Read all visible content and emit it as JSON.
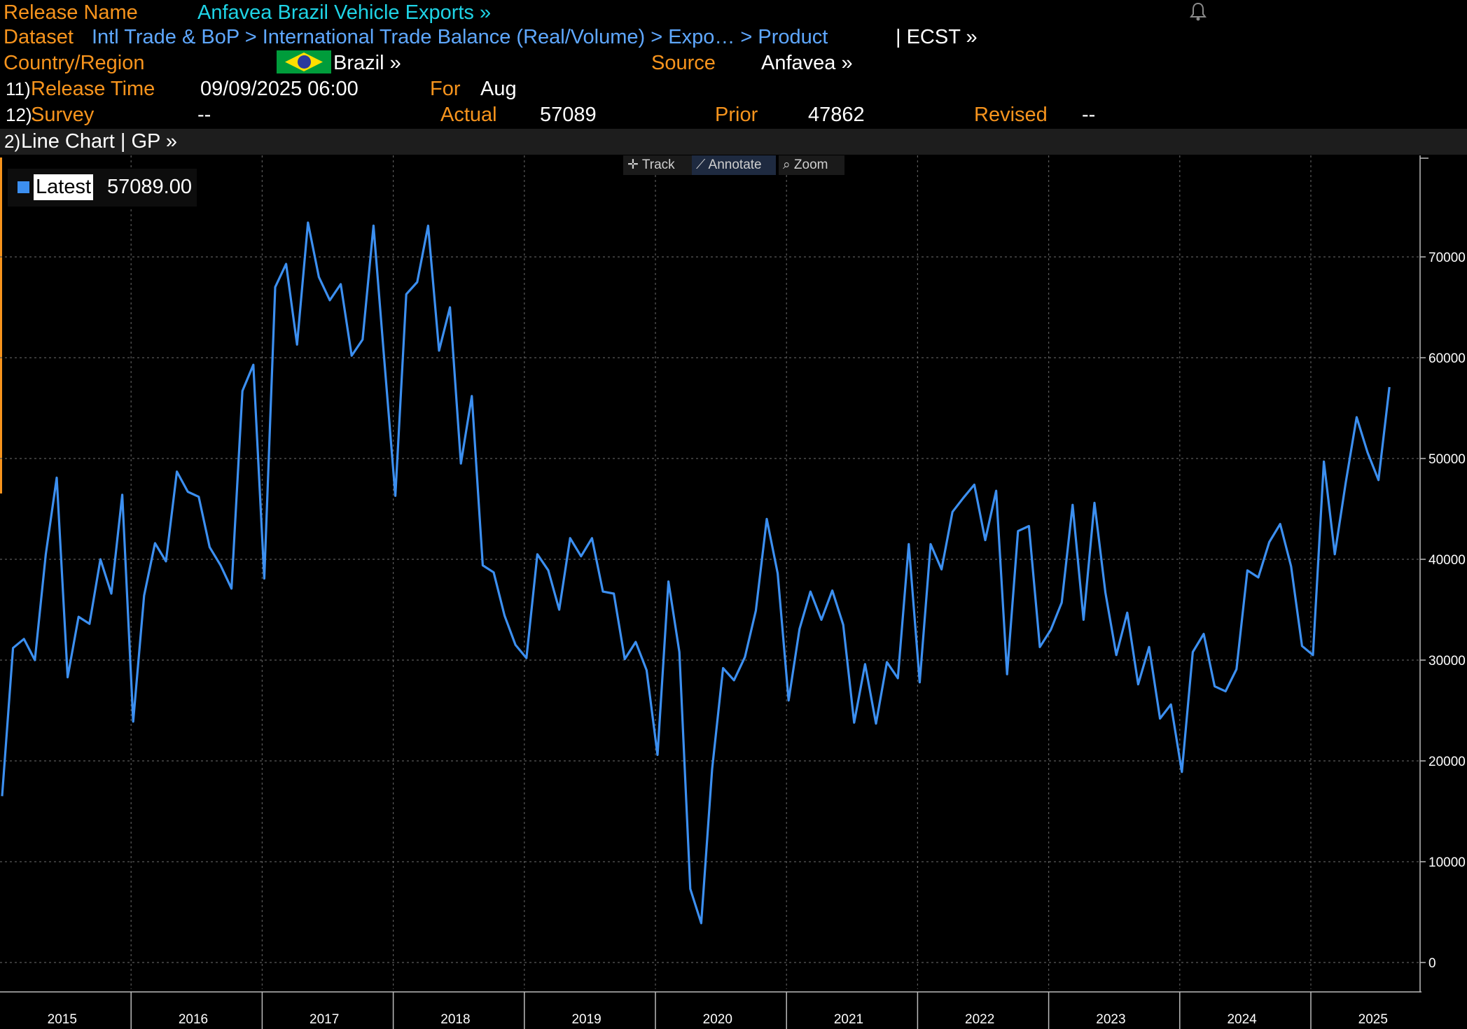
{
  "header": {
    "release_name_label": "Release Name",
    "release_name": "Anfavea Brazil Vehicle Exports »",
    "dataset_label": "Dataset",
    "dataset_path": "Intl Trade & BoP > International Trade Balance (Real/Volume) > Expo…  > Product",
    "dataset_ticker": "| ECST »",
    "country_label": "Country/Region",
    "country": "Brazil »",
    "source_label": "Source",
    "source": "Anfavea »",
    "release_time_num": "11)",
    "release_time_label": "Release Time",
    "release_time": "09/09/2025 06:00",
    "for_label": "For",
    "for_value": "Aug",
    "survey_num": "12)",
    "survey_label": "Survey",
    "survey_value": "--",
    "actual_label": "Actual",
    "actual_value": "57089",
    "prior_label": "Prior",
    "prior_value": "47862",
    "revised_label": "Revised",
    "revised_value": "--"
  },
  "chart_bar": {
    "num": "2)",
    "label": "Line Chart | GP »"
  },
  "tools": {
    "track": "Track",
    "annotate": "Annotate",
    "zoom": "Zoom"
  },
  "legend": {
    "label": "Latest",
    "value": "57089.00"
  },
  "colors": {
    "line": "#3c8ff0",
    "label_orange": "#f7941d",
    "title_cyan": "#1fd4e6",
    "link_blue": "#5fa8ff"
  },
  "chart_data": {
    "type": "line",
    "series": [
      {
        "name": "Latest",
        "x_start": "2015-01",
        "frequency": "monthly",
        "values": [
          16500,
          31200,
          32100,
          30000,
          40500,
          48100,
          28300,
          34300,
          33600,
          40000,
          36600,
          46400,
          23900,
          36400,
          41600,
          39800,
          48700,
          46700,
          46200,
          41200,
          39400,
          37100,
          56700,
          59300,
          38100,
          67000,
          69300,
          61300,
          73400,
          68000,
          65700,
          67300,
          60200,
          61800,
          73100,
          59600,
          46300,
          66300,
          67500,
          73100,
          60700,
          65000,
          49500,
          56200,
          39400,
          38700,
          34400,
          31500,
          30200,
          40500,
          38900,
          35000,
          42100,
          40300,
          42100,
          36800,
          36600,
          30100,
          31800,
          29000,
          20600,
          37800,
          30800,
          7300,
          3900,
          19200,
          29200,
          28000,
          30300,
          34900,
          44000,
          38600,
          26000,
          33100,
          36800,
          34000,
          36900,
          33500,
          23800,
          29600,
          23700,
          29800,
          28200,
          41500,
          27800,
          41500,
          39000,
          44700,
          46100,
          47400,
          41900,
          46800,
          28600,
          42800,
          43300,
          31300,
          33000,
          35700,
          45400,
          34000,
          45600,
          36700,
          30500,
          34700,
          27600,
          31300,
          24200,
          25600,
          18900,
          30800,
          32600,
          27400,
          26900,
          29100,
          38900,
          38200,
          41700,
          43500,
          39300,
          31400,
          30500,
          49700,
          40500,
          47600,
          54100,
          50600,
          47862,
          57089
        ]
      }
    ],
    "x_tick_labels": [
      "2015",
      "2016",
      "2017",
      "2018",
      "2019",
      "2020",
      "2021",
      "2022",
      "2023",
      "2024",
      "2025"
    ],
    "y_ticks": [
      0,
      10000,
      20000,
      30000,
      40000,
      50000,
      60000,
      70000
    ],
    "ylim": [
      -2000,
      80000
    ],
    "grid": true,
    "legend_position": "top-left",
    "y_axis_side": "right"
  }
}
